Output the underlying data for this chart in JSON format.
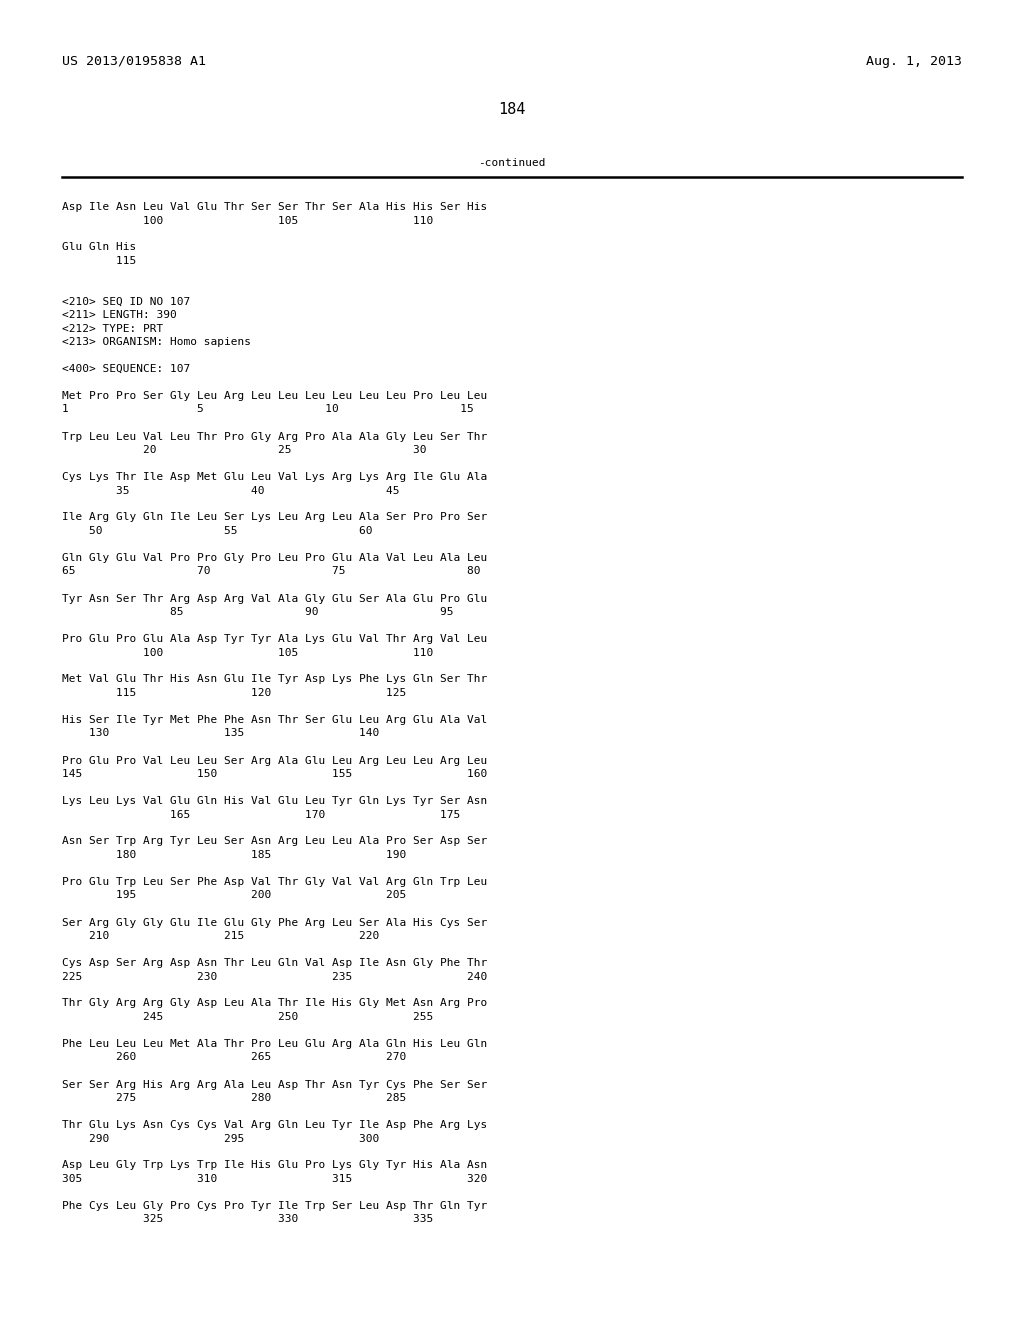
{
  "header_left": "US 2013/0195838 A1",
  "header_right": "Aug. 1, 2013",
  "page_number": "184",
  "continued_text": "-continued",
  "bg_color": "#ffffff",
  "text_color": "#000000",
  "font_size": 8.0,
  "header_font_size": 9.5,
  "page_num_font_size": 11,
  "lines": [
    "Asp Ile Asn Leu Val Glu Thr Ser Ser Thr Ser Ala His His Ser His",
    "            100                 105                 110",
    "",
    "Glu Gln His",
    "        115",
    "",
    "",
    "<210> SEQ ID NO 107",
    "<211> LENGTH: 390",
    "<212> TYPE: PRT",
    "<213> ORGANISM: Homo sapiens",
    "",
    "<400> SEQUENCE: 107",
    "",
    "Met Pro Pro Ser Gly Leu Arg Leu Leu Leu Leu Leu Leu Pro Leu Leu",
    "1                   5                  10                  15",
    "",
    "Trp Leu Leu Val Leu Thr Pro Gly Arg Pro Ala Ala Gly Leu Ser Thr",
    "            20                  25                  30",
    "",
    "Cys Lys Thr Ile Asp Met Glu Leu Val Lys Arg Lys Arg Ile Glu Ala",
    "        35                  40                  45",
    "",
    "Ile Arg Gly Gln Ile Leu Ser Lys Leu Arg Leu Ala Ser Pro Pro Ser",
    "    50                  55                  60",
    "",
    "Gln Gly Glu Val Pro Pro Gly Pro Leu Pro Glu Ala Val Leu Ala Leu",
    "65                  70                  75                  80",
    "",
    "Tyr Asn Ser Thr Arg Asp Arg Val Ala Gly Glu Ser Ala Glu Pro Glu",
    "                85                  90                  95",
    "",
    "Pro Glu Pro Glu Ala Asp Tyr Tyr Ala Lys Glu Val Thr Arg Val Leu",
    "            100                 105                 110",
    "",
    "Met Val Glu Thr His Asn Glu Ile Tyr Asp Lys Phe Lys Gln Ser Thr",
    "        115                 120                 125",
    "",
    "His Ser Ile Tyr Met Phe Phe Asn Thr Ser Glu Leu Arg Glu Ala Val",
    "    130                 135                 140",
    "",
    "Pro Glu Pro Val Leu Leu Ser Arg Ala Glu Leu Arg Leu Leu Arg Leu",
    "145                 150                 155                 160",
    "",
    "Lys Leu Lys Val Glu Gln His Val Glu Leu Tyr Gln Lys Tyr Ser Asn",
    "                165                 170                 175",
    "",
    "Asn Ser Trp Arg Tyr Leu Ser Asn Arg Leu Leu Ala Pro Ser Asp Ser",
    "        180                 185                 190",
    "",
    "Pro Glu Trp Leu Ser Phe Asp Val Thr Gly Val Val Arg Gln Trp Leu",
    "        195                 200                 205",
    "",
    "Ser Arg Gly Gly Glu Ile Glu Gly Phe Arg Leu Ser Ala His Cys Ser",
    "    210                 215                 220",
    "",
    "Cys Asp Ser Arg Asp Asn Thr Leu Gln Val Asp Ile Asn Gly Phe Thr",
    "225                 230                 235                 240",
    "",
    "Thr Gly Arg Arg Gly Asp Leu Ala Thr Ile His Gly Met Asn Arg Pro",
    "            245                 250                 255",
    "",
    "Phe Leu Leu Leu Met Ala Thr Pro Leu Glu Arg Ala Gln His Leu Gln",
    "        260                 265                 270",
    "",
    "Ser Ser Arg His Arg Arg Ala Leu Asp Thr Asn Tyr Cys Phe Ser Ser",
    "        275                 280                 285",
    "",
    "Thr Glu Lys Asn Cys Cys Val Arg Gln Leu Tyr Ile Asp Phe Arg Lys",
    "    290                 295                 300",
    "",
    "Asp Leu Gly Trp Lys Trp Ile His Glu Pro Lys Gly Tyr His Ala Asn",
    "305                 310                 315                 320",
    "",
    "Phe Cys Leu Gly Pro Cys Pro Tyr Ile Trp Ser Leu Asp Thr Gln Tyr",
    "            325                 330                 335"
  ]
}
